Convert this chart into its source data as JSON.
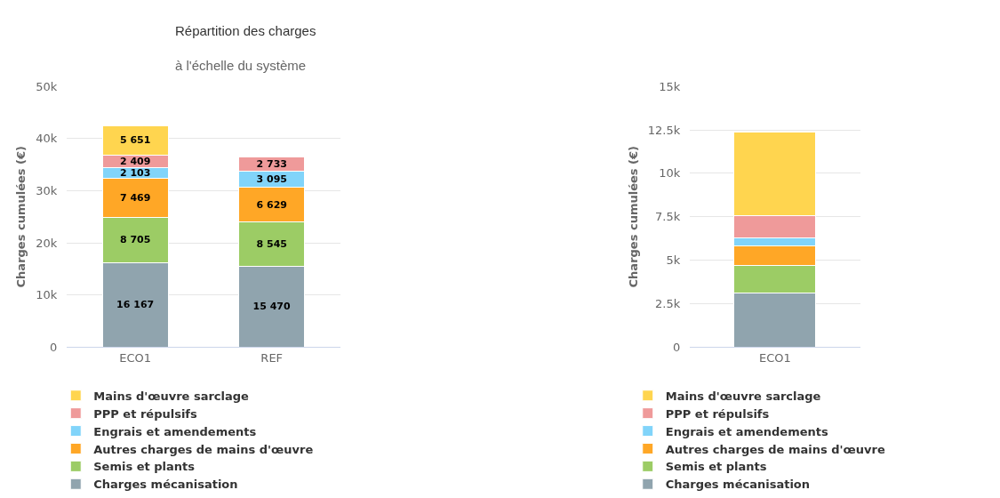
{
  "chart_data": [
    {
      "type": "bar",
      "title": "Répartition des charges",
      "subtitle": "à l'échelle du système",
      "ylabel": "Charges cumulées (€)",
      "categories": [
        "ECO1",
        "REF"
      ],
      "stacked": true,
      "grid": "y",
      "legend": "bottom",
      "ylim": [
        0,
        50000
      ],
      "yticks": [
        0,
        {
          "value": 10000,
          "label": "10k"
        },
        {
          "value": 20000,
          "label": "20k"
        },
        {
          "value": 30000,
          "label": "30k"
        },
        {
          "value": 40000,
          "label": "40k"
        },
        {
          "value": 50000,
          "label": "50k"
        }
      ],
      "series": [
        {
          "name": "Charges mécanisation",
          "color": "#90a4ae",
          "values": [
            16167,
            15470
          ],
          "value_labels": [
            "16 167",
            "15 470"
          ]
        },
        {
          "name": "Semis et plants",
          "color": "#9ccc65",
          "values": [
            8705,
            8545
          ],
          "value_labels": [
            "8 705",
            "8 545"
          ]
        },
        {
          "name": "Autres charges de mains d'œuvre",
          "color": "#ffa726",
          "values": [
            7469,
            6629
          ],
          "value_labels": [
            "7 469",
            "6 629"
          ]
        },
        {
          "name": "Engrais et amendements",
          "color": "#81d4fa",
          "values": [
            2103,
            3095
          ],
          "value_labels": [
            "2 103",
            "3 095"
          ]
        },
        {
          "name": "PPP et répulsifs",
          "color": "#ef9a9a",
          "values": [
            2409,
            2733
          ],
          "value_labels": [
            "2 409",
            "2 733"
          ]
        },
        {
          "name": "Mains d'œuvre sarclage",
          "color": "#ffd54f",
          "values": [
            5651,
            null
          ],
          "value_labels": [
            "5 651",
            null
          ]
        }
      ]
    },
    {
      "type": "bar",
      "ylabel": "Charges cumulées (€)",
      "categories": [
        "ECO1"
      ],
      "stacked": true,
      "grid": "y",
      "legend": "bottom",
      "ylim": [
        0,
        15000
      ],
      "yticks": [
        0,
        {
          "value": 2500,
          "label": "2.5k"
        },
        {
          "value": 5000,
          "label": "5k"
        },
        {
          "value": 7500,
          "label": "7.5k"
        },
        {
          "value": 10000,
          "label": "10k"
        },
        {
          "value": 12500,
          "label": "12.5k"
        },
        {
          "value": 15000,
          "label": "15k"
        }
      ],
      "series": [
        {
          "name": "Charges mécanisation",
          "color": "#90a4ae",
          "values": [
            3100
          ]
        },
        {
          "name": "Semis et plants",
          "color": "#9ccc65",
          "values": [
            1590
          ]
        },
        {
          "name": "Autres charges de mains d'œuvre",
          "color": "#ffa726",
          "values": [
            1120
          ]
        },
        {
          "name": "Engrais et amendements",
          "color": "#81d4fa",
          "values": [
            480
          ]
        },
        {
          "name": "PPP et répulsifs",
          "color": "#ef9a9a",
          "values": [
            1290
          ]
        },
        {
          "name": "Mains d'œuvre sarclage",
          "color": "#ffd54f",
          "values": [
            4820
          ]
        }
      ]
    }
  ]
}
